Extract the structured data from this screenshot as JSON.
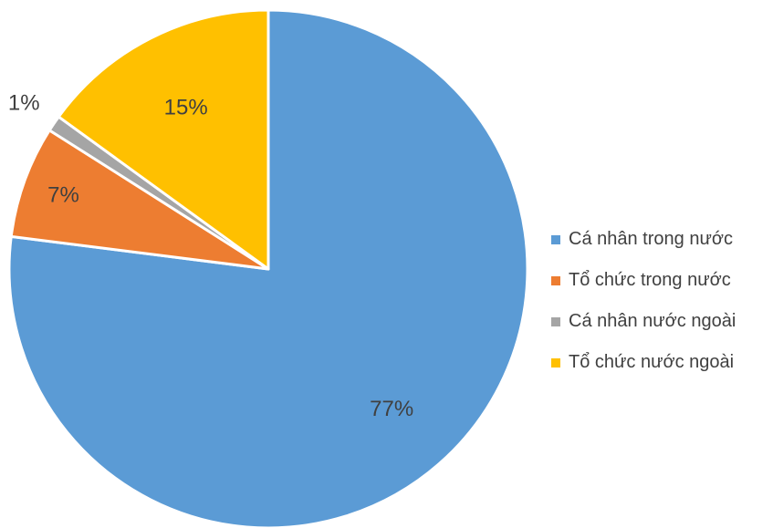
{
  "chart_data": {
    "type": "pie",
    "categories": [
      "Cá nhân trong nước",
      "Tổ chức trong nước",
      "Cá nhân nước ngoài",
      "Tổ chức nước ngoài"
    ],
    "values": [
      77,
      7,
      1,
      15
    ],
    "labels": [
      "77%",
      "7%",
      "1%",
      "15%"
    ],
    "colors": [
      "#5B9BD5",
      "#ED7D31",
      "#A5A5A5",
      "#FFC000"
    ],
    "start_angle": "12 o'clock",
    "direction": "clockwise",
    "legend_position": "right"
  }
}
